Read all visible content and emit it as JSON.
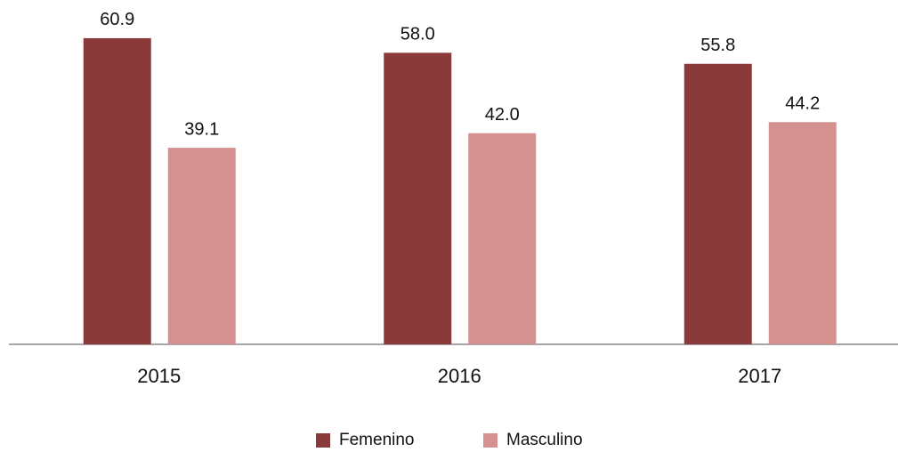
{
  "chart_data": {
    "type": "bar",
    "categories": [
      "2015",
      "2016",
      "2017"
    ],
    "series": [
      {
        "name": "Femenino",
        "color": "#8b3a3c",
        "values": [
          60.9,
          58.0,
          55.8
        ],
        "value_labels": [
          "60.9",
          "58.0",
          "55.8"
        ]
      },
      {
        "name": "Masculino",
        "color": "#d49190",
        "values": [
          39.1,
          42.0,
          44.2
        ],
        "value_labels": [
          "39.1",
          "42.0",
          "44.2"
        ]
      }
    ],
    "ylim": [
      0,
      68.5
    ],
    "legend": "bottom"
  }
}
